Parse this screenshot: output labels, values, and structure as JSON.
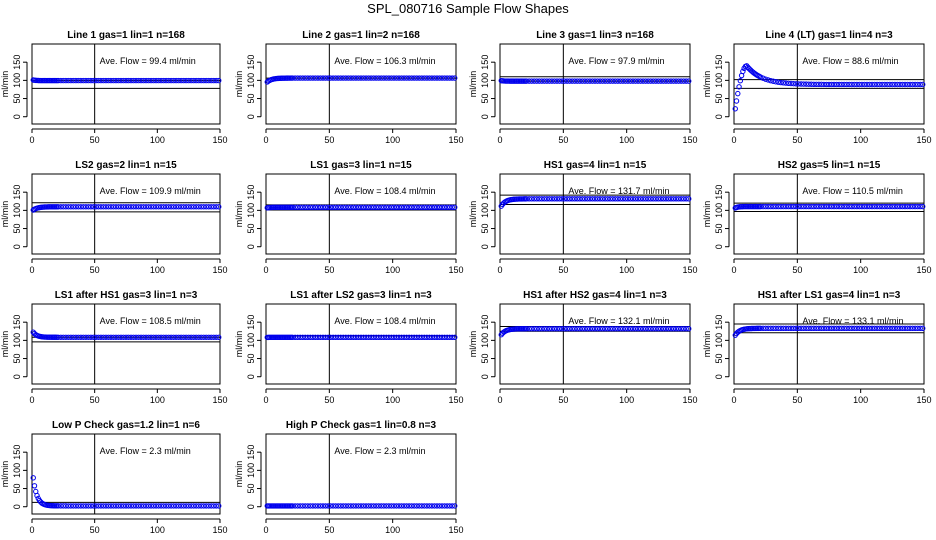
{
  "title": "SPL_080716  Sample Flow Shapes",
  "colors": {
    "points": "#0000ee",
    "axis": "#000000",
    "background": "#ffffff"
  },
  "chart_data": [
    {
      "type": "scatter",
      "title": "Line 1 gas=1 lin=1 n=168",
      "ylabel": "ml/min",
      "annotation": "Ave. Flow =  99.4  ml/min",
      "xlim": [
        0,
        150
      ],
      "ylim": [
        -20,
        200
      ],
      "xticks": [
        0,
        50,
        100,
        150
      ],
      "yticks": [
        0,
        50,
        100,
        150
      ],
      "vline": 50,
      "hlines": [
        99.4,
        78
      ],
      "pattern": "flat",
      "start_value": 102,
      "steady_value": 99.4
    },
    {
      "type": "scatter",
      "title": "Line 2 gas=1 lin=2 n=168",
      "ylabel": "ml/min",
      "annotation": "Ave. Flow =  106.3  ml/min",
      "xlim": [
        0,
        150
      ],
      "ylim": [
        -20,
        200
      ],
      "xticks": [
        0,
        50,
        100,
        150
      ],
      "yticks": [
        0,
        50,
        100,
        150
      ],
      "vline": 50,
      "hlines": [
        106.3
      ],
      "pattern": "rise",
      "start_value": 92,
      "steady_value": 106.3
    },
    {
      "type": "scatter",
      "title": "Line 3 gas=1 lin=3 n=168",
      "ylabel": "ml/min",
      "annotation": "Ave. Flow =  97.9  ml/min",
      "xlim": [
        0,
        150
      ],
      "ylim": [
        -20,
        200
      ],
      "xticks": [
        0,
        50,
        100,
        150
      ],
      "yticks": [
        0,
        50,
        100,
        150
      ],
      "vline": 50,
      "hlines": [
        110,
        97.9
      ],
      "pattern": "flat",
      "start_value": 100,
      "steady_value": 97.9
    },
    {
      "type": "scatter",
      "title": "Line 4 (LT) gas=1 lin=4 n=3",
      "ylabel": "ml/min",
      "annotation": "Ave. Flow =  88.6  ml/min",
      "xlim": [
        0,
        150
      ],
      "ylim": [
        -20,
        200
      ],
      "xticks": [
        0,
        50,
        100,
        150
      ],
      "yticks": [
        0,
        50,
        100,
        150
      ],
      "vline": 50,
      "hlines": [
        102,
        78
      ],
      "pattern": "overshoot",
      "start_value": 0,
      "peak_value": 140,
      "steady_value": 88.6
    },
    {
      "type": "scatter",
      "title": "LS2 gas=2 lin=1 n=15",
      "ylabel": "ml/min",
      "annotation": "Ave. Flow =  109.9  ml/min",
      "xlim": [
        0,
        150
      ],
      "ylim": [
        -20,
        200
      ],
      "xticks": [
        0,
        50,
        100,
        150
      ],
      "yticks": [
        0,
        50,
        100,
        150
      ],
      "vline": 50,
      "hlines": [
        121,
        96
      ],
      "pattern": "rise",
      "start_value": 98,
      "steady_value": 109.9
    },
    {
      "type": "scatter",
      "title": "LS1 gas=3 lin=1 n=15",
      "ylabel": "ml/min",
      "annotation": "Ave. Flow =  108.4  ml/min",
      "xlim": [
        0,
        150
      ],
      "ylim": [
        -20,
        200
      ],
      "xticks": [
        0,
        50,
        100,
        150
      ],
      "yticks": [
        0,
        50,
        100,
        150
      ],
      "vline": 50,
      "hlines": [
        115,
        101
      ],
      "pattern": "flat",
      "start_value": 106,
      "steady_value": 108.4
    },
    {
      "type": "scatter",
      "title": "HS1 gas=4 lin=1 n=15",
      "ylabel": "ml/min",
      "annotation": "Ave. Flow =  131.7  ml/min",
      "xlim": [
        0,
        150
      ],
      "ylim": [
        -20,
        200
      ],
      "xticks": [
        0,
        50,
        100,
        150
      ],
      "yticks": [
        0,
        50,
        100,
        150
      ],
      "vline": 50,
      "hlines": [
        142,
        116
      ],
      "pattern": "rise",
      "start_value": 105,
      "steady_value": 131.7
    },
    {
      "type": "scatter",
      "title": "HS2 gas=5 lin=1 n=15",
      "ylabel": "ml/min",
      "annotation": "Ave. Flow =  110.5  ml/min",
      "xlim": [
        0,
        150
      ],
      "ylim": [
        -20,
        200
      ],
      "xticks": [
        0,
        50,
        100,
        150
      ],
      "yticks": [
        0,
        50,
        100,
        150
      ],
      "vline": 50,
      "hlines": [
        120,
        97
      ],
      "pattern": "flat",
      "start_value": 104,
      "steady_value": 110.5
    },
    {
      "type": "scatter",
      "title": "LS1 after HS1 gas=3 lin=1 n=3",
      "ylabel": "ml/min",
      "annotation": "Ave. Flow =  108.5  ml/min",
      "xlim": [
        0,
        150
      ],
      "ylim": [
        -20,
        200
      ],
      "xticks": [
        0,
        50,
        100,
        150
      ],
      "yticks": [
        0,
        50,
        100,
        150
      ],
      "vline": 50,
      "hlines": [
        108.5,
        96
      ],
      "pattern": "decay",
      "start_value": 128,
      "steady_value": 108.5
    },
    {
      "type": "scatter",
      "title": "LS1 after LS2 gas=3 lin=1 n=3",
      "ylabel": "ml/min",
      "annotation": "Ave. Flow =  108.4  ml/min",
      "xlim": [
        0,
        150
      ],
      "ylim": [
        -20,
        200
      ],
      "xticks": [
        0,
        50,
        100,
        150
      ],
      "yticks": [
        0,
        50,
        100,
        150
      ],
      "vline": 50,
      "hlines": [
        112
      ],
      "pattern": "flat",
      "start_value": 108,
      "steady_value": 108.4
    },
    {
      "type": "scatter",
      "title": "HS1 after HS2 gas=4 lin=1 n=3",
      "ylabel": "ml/min",
      "annotation": "Ave. Flow =  132.1  ml/min",
      "xlim": [
        0,
        150
      ],
      "ylim": [
        -20,
        200
      ],
      "xticks": [
        0,
        50,
        100,
        150
      ],
      "yticks": [
        0,
        50,
        100,
        150
      ],
      "vline": 50,
      "hlines": [
        138,
        125
      ],
      "pattern": "rise",
      "start_value": 110,
      "steady_value": 132.1
    },
    {
      "type": "scatter",
      "title": "HS1 after LS1 gas=4 lin=1 n=3",
      "ylabel": "ml/min",
      "annotation": "Ave. Flow =  133.1  ml/min",
      "xlim": [
        0,
        150
      ],
      "ylim": [
        -20,
        200
      ],
      "xticks": [
        0,
        50,
        100,
        150
      ],
      "yticks": [
        0,
        50,
        100,
        150
      ],
      "vline": 50,
      "hlines": [
        145,
        121
      ],
      "pattern": "rise",
      "start_value": 108,
      "steady_value": 133.1
    },
    {
      "type": "scatter",
      "title": "Low P Check gas=1.2 lin=1 n=6",
      "ylabel": "ml/min",
      "annotation": "Ave. Flow =  2.3  ml/min",
      "xlim": [
        0,
        150
      ],
      "ylim": [
        -20,
        200
      ],
      "xticks": [
        0,
        50,
        100,
        150
      ],
      "yticks": [
        0,
        50,
        100,
        150
      ],
      "vline": 50,
      "hlines": [
        12
      ],
      "pattern": "decay",
      "start_value": 110,
      "steady_value": 2.3
    },
    {
      "type": "scatter",
      "title": "High P Check gas=1 lin=0.8 n=3",
      "ylabel": "ml/min",
      "annotation": "Ave. Flow =  2.3  ml/min",
      "xlim": [
        0,
        150
      ],
      "ylim": [
        -20,
        200
      ],
      "xticks": [
        0,
        50,
        100,
        150
      ],
      "yticks": [
        0,
        50,
        100,
        150
      ],
      "vline": 50,
      "hlines": [],
      "pattern": "flat",
      "start_value": 2.3,
      "steady_value": 2.3
    }
  ]
}
